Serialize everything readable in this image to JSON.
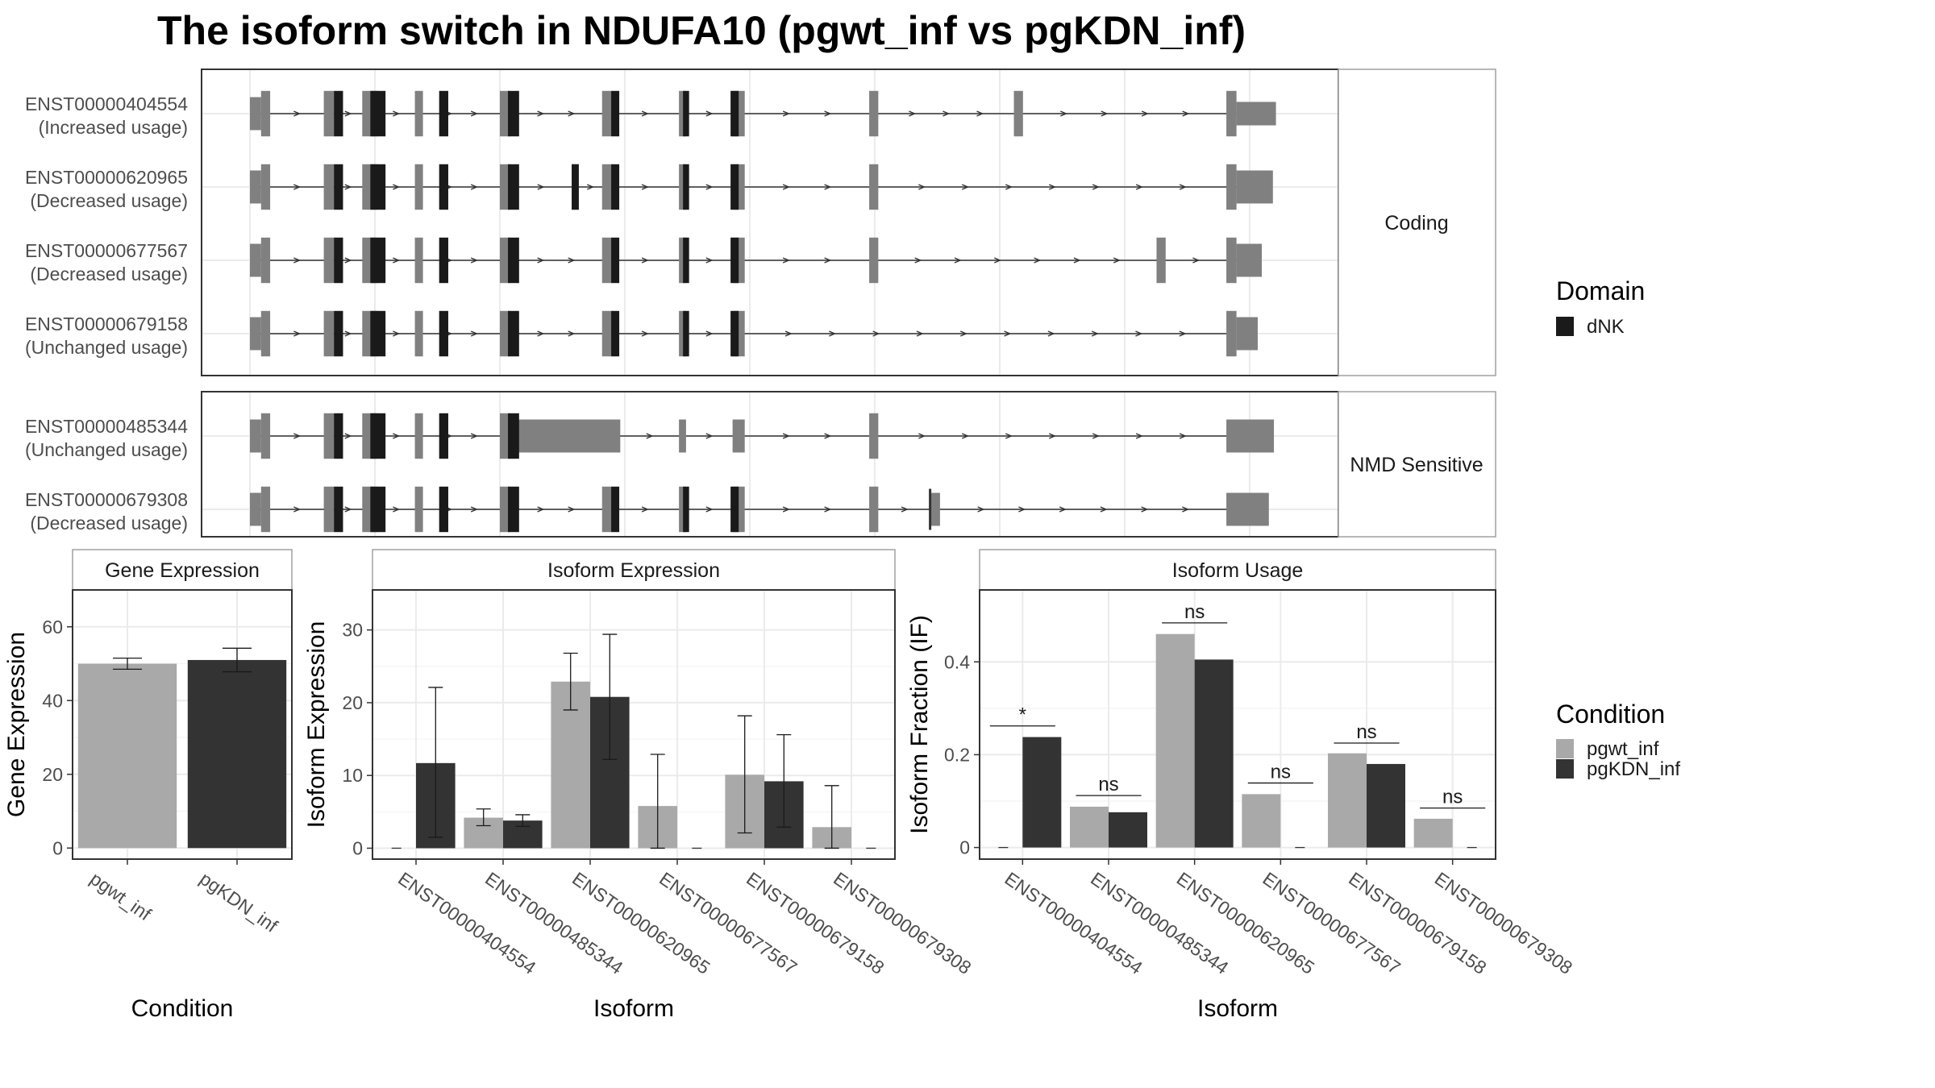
{
  "title": "The isoform switch in NDUFA10 (pgwt_inf vs pgKDN_inf)",
  "colors": {
    "exon": "#808080",
    "domain": "#1a1a1a",
    "pgwt_inf": "#a9a9a9",
    "pgKDN_inf": "#333333",
    "grid": "#ebebeb",
    "panel_border": "#333333",
    "strip_border": "#a0a0a0",
    "axis_text": "#4d4d4d"
  },
  "structure": {
    "coord_range": [
      0,
      100
    ],
    "grid_x": [
      0,
      12.35,
      24.7,
      37.05,
      49.4,
      61.75,
      74.1,
      86.45,
      98.8
    ],
    "facets": [
      {
        "label": "Coding",
        "transcripts": [
          {
            "id": "ENST00000404554",
            "usage": "(Increased usage)",
            "start": 0.0,
            "end": 100.0,
            "exons": [
              [
                0.0,
                1.1,
                0.45
              ],
              [
                1.1,
                2.0,
                0.62
              ],
              [
                7.3,
                8.3,
                0.62
              ],
              [
                11.1,
                12.6,
                0.62
              ],
              [
                16.3,
                17.1,
                0.62
              ],
              [
                24.7,
                25.7,
                0.62
              ],
              [
                34.8,
                35.7,
                0.62
              ],
              [
                42.4,
                43.1,
                0.62
              ],
              [
                47.7,
                48.9,
                0.62
              ],
              [
                61.2,
                62.1,
                0.62
              ],
              [
                75.5,
                76.4,
                0.62
              ],
              [
                96.5,
                97.5,
                0.62
              ],
              [
                97.5,
                101.4,
                0.32
              ]
            ],
            "domains": [
              [
                8.3,
                9.2
              ],
              [
                11.9,
                13.4
              ],
              [
                18.7,
                19.6
              ],
              [
                25.5,
                26.6
              ],
              [
                35.7,
                36.5
              ],
              [
                42.8,
                43.4
              ],
              [
                47.5,
                48.3
              ]
            ]
          },
          {
            "id": "ENST00000620965",
            "usage": "(Decreased usage)",
            "start": 0.0,
            "end": 100.0,
            "exons": [
              [
                0.0,
                1.1,
                0.45
              ],
              [
                1.1,
                2.0,
                0.62
              ],
              [
                7.3,
                8.3,
                0.62
              ],
              [
                11.1,
                12.6,
                0.62
              ],
              [
                16.3,
                17.1,
                0.62
              ],
              [
                24.7,
                25.7,
                0.62
              ],
              [
                31.8,
                32.5,
                0.62
              ],
              [
                34.8,
                35.7,
                0.62
              ],
              [
                42.4,
                43.1,
                0.62
              ],
              [
                47.7,
                48.9,
                0.62
              ],
              [
                61.2,
                62.1,
                0.62
              ],
              [
                96.5,
                97.5,
                0.62
              ],
              [
                97.5,
                101.1,
                0.45
              ]
            ],
            "domains": [
              [
                8.3,
                9.2
              ],
              [
                11.9,
                13.4
              ],
              [
                18.7,
                19.6
              ],
              [
                25.5,
                26.6
              ],
              [
                31.8,
                32.5
              ],
              [
                35.7,
                36.5
              ],
              [
                42.8,
                43.4
              ],
              [
                47.5,
                48.3
              ]
            ]
          },
          {
            "id": "ENST00000677567",
            "usage": "(Decreased usage)",
            "start": 0.0,
            "end": 98.0,
            "exons": [
              [
                0.0,
                1.1,
                0.45
              ],
              [
                1.1,
                2.0,
                0.62
              ],
              [
                7.3,
                8.3,
                0.62
              ],
              [
                11.1,
                12.6,
                0.62
              ],
              [
                16.3,
                17.1,
                0.62
              ],
              [
                24.7,
                25.7,
                0.62
              ],
              [
                34.8,
                35.7,
                0.62
              ],
              [
                42.4,
                43.1,
                0.62
              ],
              [
                47.7,
                48.9,
                0.62
              ],
              [
                61.2,
                62.1,
                0.62
              ],
              [
                89.6,
                90.5,
                0.62
              ],
              [
                96.5,
                97.5,
                0.62
              ],
              [
                97.5,
                100.0,
                0.45
              ]
            ],
            "domains": [
              [
                8.3,
                9.2
              ],
              [
                11.9,
                13.4
              ],
              [
                18.7,
                19.6
              ],
              [
                25.5,
                26.6
              ],
              [
                35.7,
                36.5
              ],
              [
                42.8,
                43.4
              ],
              [
                47.5,
                48.3
              ]
            ]
          },
          {
            "id": "ENST00000679158",
            "usage": "(Unchanged usage)",
            "start": 0.0,
            "end": 97.0,
            "exons": [
              [
                0.0,
                1.1,
                0.45
              ],
              [
                1.1,
                2.0,
                0.62
              ],
              [
                7.3,
                8.3,
                0.62
              ],
              [
                11.1,
                12.6,
                0.62
              ],
              [
                16.3,
                17.1,
                0.62
              ],
              [
                24.7,
                25.7,
                0.62
              ],
              [
                34.8,
                35.7,
                0.62
              ],
              [
                42.4,
                43.1,
                0.62
              ],
              [
                47.7,
                48.9,
                0.62
              ],
              [
                96.5,
                97.5,
                0.62
              ],
              [
                97.5,
                99.6,
                0.45
              ]
            ],
            "domains": [
              [
                8.3,
                9.2
              ],
              [
                11.9,
                13.4
              ],
              [
                18.7,
                19.6
              ],
              [
                25.5,
                26.6
              ],
              [
                35.7,
                36.5
              ],
              [
                42.8,
                43.4
              ],
              [
                47.5,
                48.3
              ]
            ]
          }
        ]
      },
      {
        "label": "NMD Sensitive",
        "transcripts": [
          {
            "id": "ENST00000485344",
            "usage": "(Unchanged usage)",
            "start": 0.0,
            "end": 100.0,
            "exons": [
              [
                0.0,
                1.1,
                0.45
              ],
              [
                1.1,
                2.0,
                0.62
              ],
              [
                7.3,
                8.3,
                0.62
              ],
              [
                11.1,
                12.6,
                0.62
              ],
              [
                16.3,
                17.1,
                0.62
              ],
              [
                24.7,
                25.7,
                0.62
              ],
              [
                25.7,
                36.6,
                0.45
              ],
              [
                42.4,
                43.1,
                0.45
              ],
              [
                47.7,
                48.9,
                0.45
              ],
              [
                61.2,
                62.1,
                0.62
              ],
              [
                96.5,
                101.2,
                0.45
              ]
            ],
            "domains": [
              [
                8.3,
                9.2
              ],
              [
                11.9,
                13.4
              ],
              [
                18.7,
                19.6
              ],
              [
                25.5,
                26.6
              ]
            ]
          },
          {
            "id": "ENST00000679308",
            "usage": "(Decreased usage)",
            "start": 0.0,
            "end": 100.0,
            "exons": [
              [
                0.0,
                1.1,
                0.45
              ],
              [
                1.1,
                2.0,
                0.62
              ],
              [
                7.3,
                8.3,
                0.62
              ],
              [
                11.1,
                12.6,
                0.62
              ],
              [
                16.3,
                17.1,
                0.62
              ],
              [
                24.7,
                25.7,
                0.62
              ],
              [
                34.8,
                35.7,
                0.62
              ],
              [
                42.4,
                43.1,
                0.62
              ],
              [
                47.7,
                48.9,
                0.62
              ],
              [
                61.2,
                62.1,
                0.62
              ],
              [
                67.3,
                68.2,
                0.45
              ],
              [
                96.5,
                100.7,
                0.45
              ]
            ],
            "domains": [
              [
                8.3,
                9.2
              ],
              [
                11.9,
                13.4
              ],
              [
                18.7,
                19.6
              ],
              [
                25.5,
                26.6
              ],
              [
                35.7,
                36.5
              ],
              [
                42.8,
                43.4
              ],
              [
                47.5,
                48.3
              ]
            ],
            "ticks": [
              67.1
            ]
          }
        ]
      }
    ],
    "legend": {
      "title": "Domain",
      "items": [
        {
          "label": "dNK",
          "color": "#1a1a1a"
        }
      ]
    }
  },
  "chart_data": [
    {
      "type": "bar",
      "strip": "Gene Expression",
      "xlabel": "Condition",
      "ylabel": "Gene Expression",
      "ylim": [
        -3,
        70
      ],
      "yticks": [
        0,
        20,
        40,
        60
      ],
      "categories": [
        "pgwt_inf",
        "pgKDN_inf"
      ],
      "values": [
        50.0,
        51.0
      ],
      "errors": [
        [
          48.5,
          51.5
        ],
        [
          47.8,
          54.2
        ]
      ]
    },
    {
      "type": "bar",
      "strip": "Isoform Expression",
      "xlabel": "Isoform",
      "ylabel": "Isoform Expression",
      "ylim": [
        -1.5,
        35.5
      ],
      "yticks": [
        0,
        10,
        20,
        30
      ],
      "categories": [
        "ENST00000404554",
        "ENST00000485344",
        "ENST00000620965",
        "ENST00000677567",
        "ENST00000679158",
        "ENST00000679308"
      ],
      "series": [
        {
          "name": "pgwt_inf",
          "values": [
            0.0,
            4.2,
            22.9,
            5.8,
            10.1,
            2.9
          ],
          "errors": [
            [
              0.0,
              0.0
            ],
            [
              3.1,
              5.4
            ],
            [
              19.0,
              26.8
            ],
            [
              0.0,
              12.9
            ],
            [
              2.1,
              18.2
            ],
            [
              0.0,
              8.6
            ]
          ]
        },
        {
          "name": "pgKDN_inf",
          "values": [
            11.7,
            3.8,
            20.8,
            0.0,
            9.2,
            0.0
          ],
          "errors": [
            [
              1.5,
              22.1
            ],
            [
              3.0,
              4.6
            ],
            [
              12.2,
              29.4
            ],
            [
              0.0,
              0.0
            ],
            [
              2.9,
              15.6
            ],
            [
              0.0,
              0.0
            ]
          ]
        }
      ]
    },
    {
      "type": "bar",
      "strip": "Isoform Usage",
      "xlabel": "Isoform",
      "ylabel": "Isoform Fraction (IF)",
      "ylim": [
        -0.025,
        0.555
      ],
      "yticks": [
        0.0,
        0.2,
        0.4
      ],
      "categories": [
        "ENST00000404554",
        "ENST00000485344",
        "ENST00000620965",
        "ENST00000677567",
        "ENST00000679158",
        "ENST00000679308"
      ],
      "series": [
        {
          "name": "pgwt_inf",
          "values": [
            0.0,
            0.088,
            0.46,
            0.115,
            0.203,
            0.062
          ]
        },
        {
          "name": "pgKDN_inf",
          "values": [
            0.238,
            0.076,
            0.405,
            0.0,
            0.18,
            0.0
          ]
        }
      ],
      "significance": [
        {
          "label": "*",
          "y": 0.262
        },
        {
          "label": "ns",
          "y": 0.112
        },
        {
          "label": "ns",
          "y": 0.484
        },
        {
          "label": "ns",
          "y": 0.139
        },
        {
          "label": "ns",
          "y": 0.225
        },
        {
          "label": "ns",
          "y": 0.085
        }
      ]
    }
  ],
  "condition_legend": {
    "title": "Condition",
    "items": [
      {
        "label": "pgwt_inf",
        "color": "#a9a9a9"
      },
      {
        "label": "pgKDN_inf",
        "color": "#333333"
      }
    ]
  }
}
